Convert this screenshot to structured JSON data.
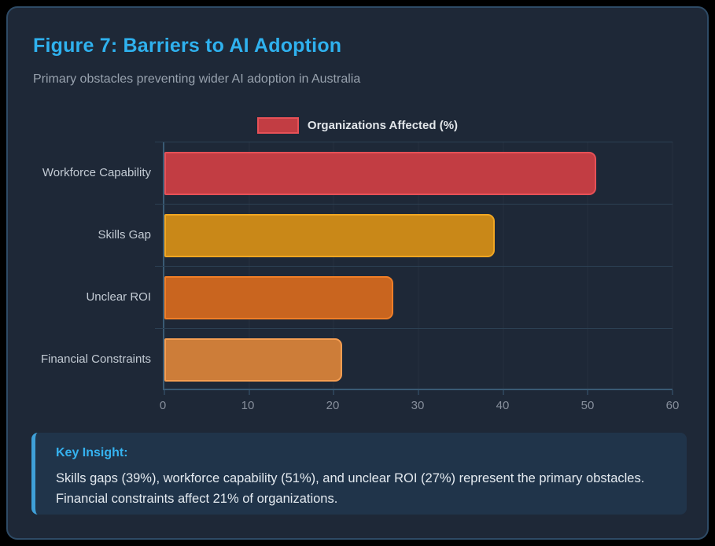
{
  "figure": {
    "title": "Figure 7: Barriers to AI Adoption",
    "subtitle": "Primary obstacles preventing wider AI adoption in Australia"
  },
  "legend": {
    "label": "Organizations Affected (%)",
    "swatch_fill": "#c23d43",
    "swatch_border": "#e65157"
  },
  "chart_data": {
    "type": "bar",
    "orientation": "horizontal",
    "title": "Figure 7: Barriers to AI Adoption",
    "subtitle": "Primary obstacles preventing wider AI adoption in Australia",
    "series_name": "Organizations Affected (%)",
    "categories": [
      "Workforce Capability",
      "Skills Gap",
      "Unclear ROI",
      "Financial Constraints"
    ],
    "values": [
      51,
      39,
      27,
      21
    ],
    "xlim": [
      0,
      60
    ],
    "xticks": [
      0,
      10,
      20,
      30,
      40,
      50,
      60
    ],
    "grid": true,
    "legend_position": "top",
    "bar_colors": [
      {
        "fill": "#c23d43",
        "border": "#e65157"
      },
      {
        "fill": "#c98818",
        "border": "#f0a622"
      },
      {
        "fill": "#c9651f",
        "border": "#ef7e27"
      },
      {
        "fill": "#cd7d39",
        "border": "#f59d51"
      }
    ]
  },
  "key_insight": {
    "title": "Key Insight:",
    "body": "Skills gaps (39%), workforce capability (51%), and unclear ROI (27%) represent the primary obstacles. Financial constraints affect 21% of organizations."
  },
  "colors": {
    "accent": "#2fb1ee",
    "card_bg": "#1e2837",
    "card_border": "#2e4b66",
    "insight_bg": "#20344a",
    "insight_border": "#3fa0d8",
    "axis_line": "#3a5a74"
  }
}
